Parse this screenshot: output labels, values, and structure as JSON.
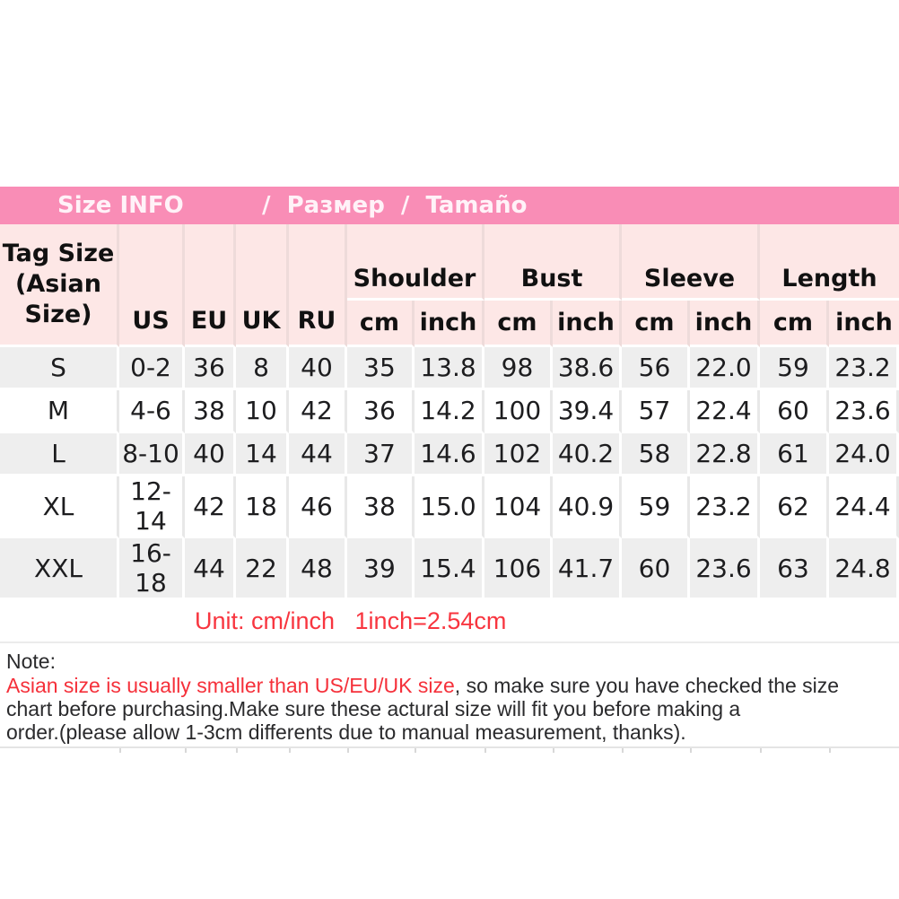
{
  "banner": {
    "title_left": "Size INFO",
    "title_right": "/  Размер  /  Tamaño",
    "bg_color": "#f98db6",
    "text_color": "#fff2f8"
  },
  "table": {
    "header": {
      "tag_lines": [
        "Tag Size",
        "(Asian",
        "Size)"
      ],
      "regions": [
        "US",
        "EU",
        "UK",
        "RU"
      ],
      "groups": [
        "Shoulder",
        "Bust",
        "Sleeve",
        "Length"
      ],
      "units": [
        "cm",
        "inch"
      ]
    },
    "rows": [
      {
        "cells": [
          "S",
          "0-2",
          "36",
          "8",
          "40",
          "35",
          "13.8",
          "98",
          "38.6",
          "56",
          "22.0",
          "59",
          "23.2"
        ]
      },
      {
        "cells": [
          "M",
          "4-6",
          "38",
          "10",
          "42",
          "36",
          "14.2",
          "100",
          "39.4",
          "57",
          "22.4",
          "60",
          "23.6"
        ]
      },
      {
        "cells": [
          "L",
          "8-10",
          "40",
          "14",
          "44",
          "37",
          "14.6",
          "102",
          "40.2",
          "58",
          "22.8",
          "61",
          "24.0"
        ]
      },
      {
        "cells": [
          "XL",
          "12-14",
          "42",
          "18",
          "46",
          "38",
          "15.0",
          "104",
          "40.9",
          "59",
          "23.2",
          "62",
          "24.4"
        ]
      },
      {
        "cells": [
          "XXL",
          "16-18",
          "44",
          "22",
          "48",
          "39",
          "15.4",
          "106",
          "41.7",
          "60",
          "23.6",
          "63",
          "24.8"
        ]
      }
    ]
  },
  "unit_line": "Unit: cm/inch   1inch=2.54cm",
  "unit_color": "#f8353f",
  "note": {
    "label": "Note:",
    "red_text": "Asian size is usually smaller than US/EU/UK size",
    "rest_line1": ", so make sure you have checked the size",
    "line2": "chart before purchasing.Make sure these actural size will fit you before making a",
    "line3": "order.(please allow 1-3cm differents due to manual measurement, thanks).",
    "red_color": "#f5303a"
  }
}
